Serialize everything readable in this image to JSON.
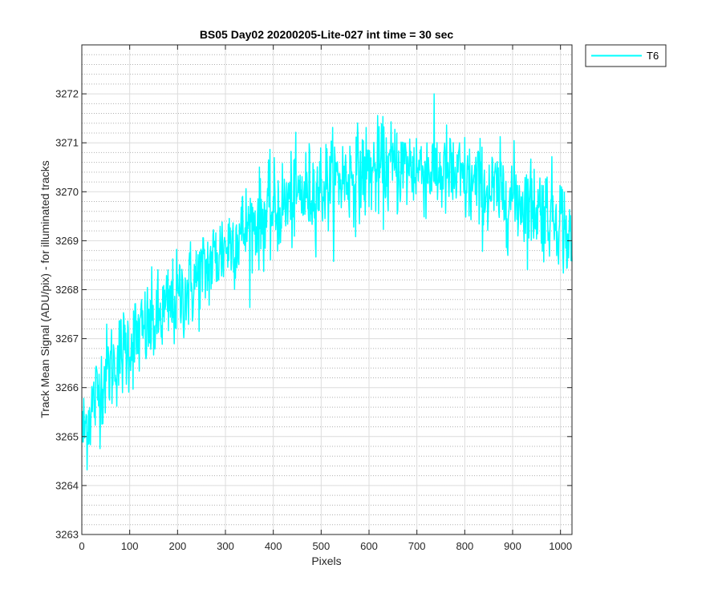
{
  "chart_data": {
    "type": "line",
    "title": "BS05 Day02 20200205-Lite-027 int time = 30 sec",
    "xlabel": "Pixels",
    "ylabel": "Track Mean Signal (ADU/pix) - for illuminated tracks",
    "xlim": [
      0,
      1024
    ],
    "ylim": [
      3263,
      3273
    ],
    "x_ticks": [
      0,
      100,
      200,
      300,
      400,
      500,
      600,
      700,
      800,
      900,
      1000
    ],
    "y_ticks": [
      3263,
      3264,
      3265,
      3266,
      3267,
      3268,
      3269,
      3270,
      3271,
      3272
    ],
    "x_tick_labels": [
      "0",
      "100",
      "200",
      "300",
      "400",
      "500",
      "600",
      "700",
      "800",
      "900",
      "1000"
    ],
    "y_tick_labels": [
      "3263",
      "3264",
      "3265",
      "3266",
      "3267",
      "3268",
      "3269",
      "3270",
      "3271",
      "3272"
    ],
    "grid": true,
    "minor_grid": true,
    "legend_position": "outside-top-right",
    "series": [
      {
        "name": "T6",
        "color": "#00FFFF",
        "trend": [
          [
            0,
            3265.0
          ],
          [
            25,
            3265.7
          ],
          [
            50,
            3266.3
          ],
          [
            100,
            3266.9
          ],
          [
            150,
            3267.3
          ],
          [
            200,
            3267.8
          ],
          [
            250,
            3268.3
          ],
          [
            300,
            3268.9
          ],
          [
            350,
            3269.3
          ],
          [
            400,
            3269.6
          ],
          [
            450,
            3269.9
          ],
          [
            500,
            3270.1
          ],
          [
            550,
            3270.3
          ],
          [
            600,
            3270.4
          ],
          [
            650,
            3270.5
          ],
          [
            700,
            3270.5
          ],
          [
            750,
            3270.4
          ],
          [
            800,
            3270.2
          ],
          [
            850,
            3270.0
          ],
          [
            900,
            3269.9
          ],
          [
            950,
            3269.7
          ],
          [
            1000,
            3269.5
          ],
          [
            1024,
            3268.8
          ]
        ],
        "noise_amplitude": 0.8,
        "points_count": 1024
      }
    ]
  }
}
